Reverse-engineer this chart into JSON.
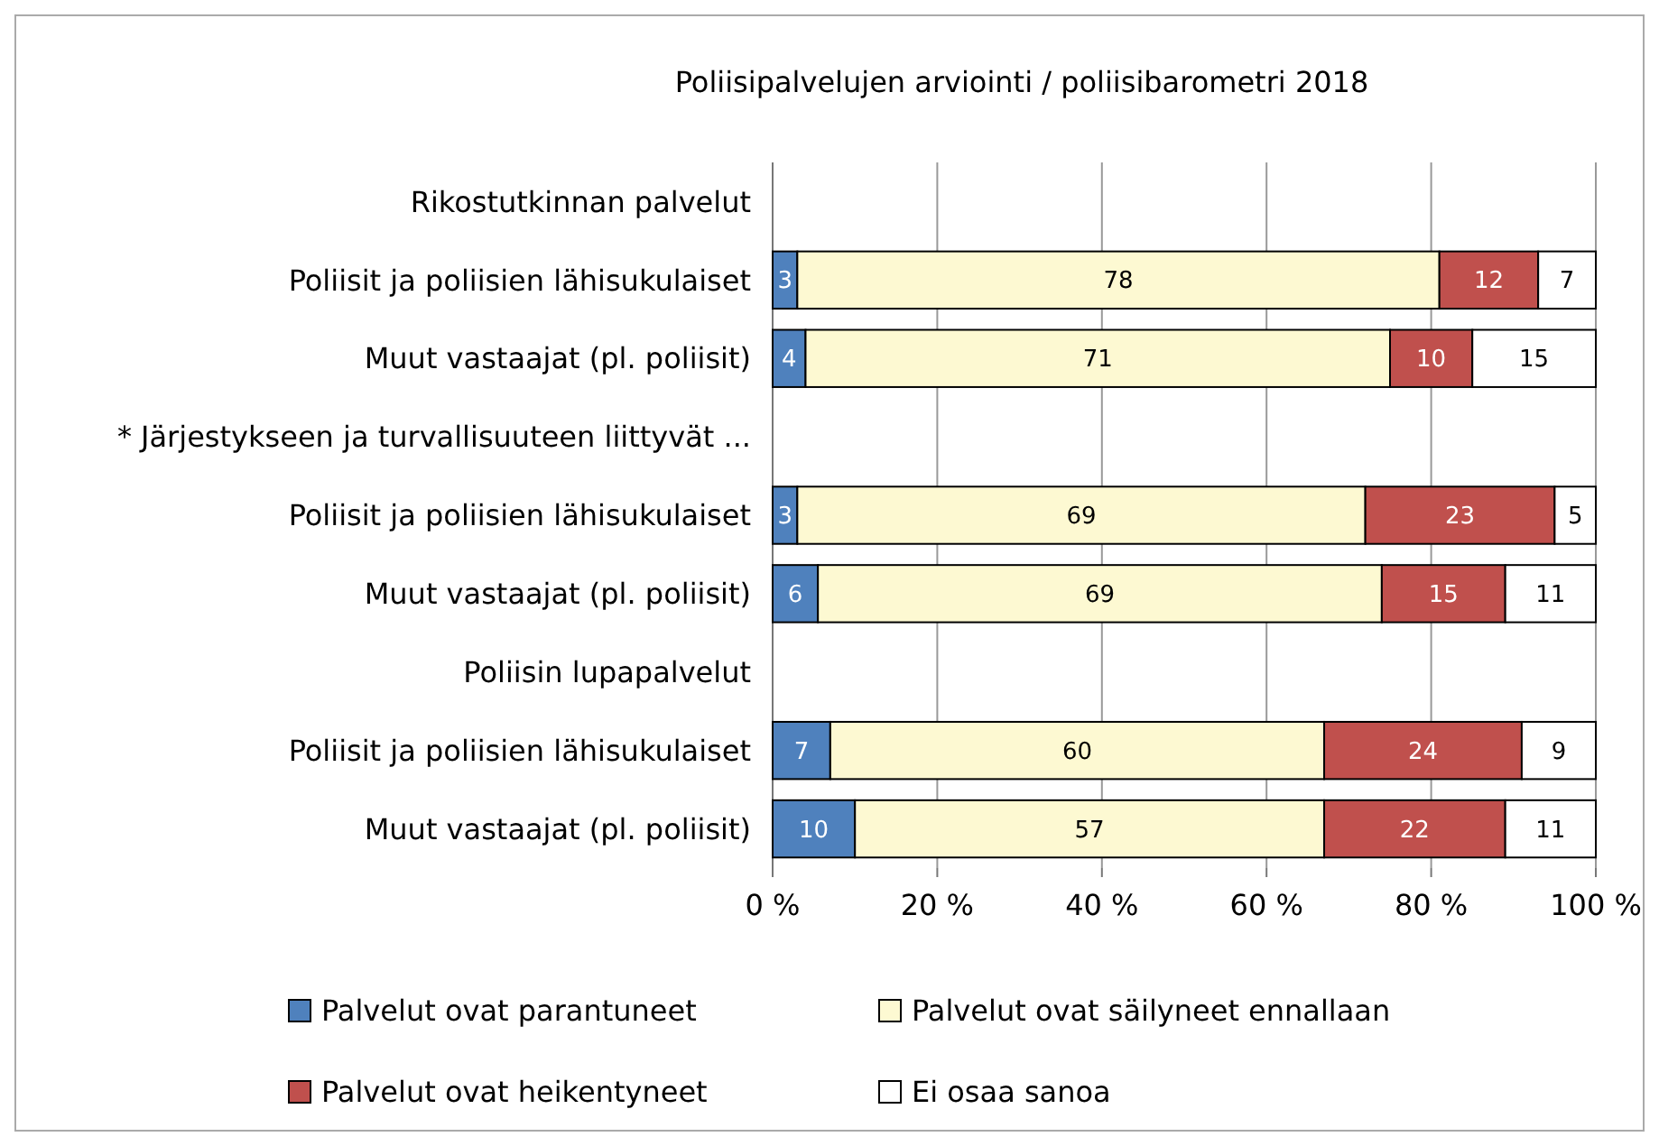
{
  "chart_data": {
    "type": "bar",
    "orientation": "horizontal",
    "stacked": true,
    "title": "Poliisipalvelujen arviointi  / poliisibarometri 2018",
    "categories": [
      "Rikostutkinnan palvelut",
      "Poliisit ja poliisien lähisukulaiset",
      "Muut vastaajat (pl. poliisit)",
      "* Järjestykseen ja turvallisuuteen liittyvät ...",
      "Poliisit ja poliisien lähisukulaiset",
      "Muut vastaajat (pl. poliisit)",
      "Poliisin lupapalvelut",
      "Poliisit ja poliisien lähisukulaiset",
      "Muut vastaajat (pl. poliisit)"
    ],
    "series": [
      {
        "name": "Palvelut ovat parantuneet",
        "color": "#4f81bd",
        "values": [
          null,
          3,
          4,
          null,
          3,
          5.5,
          null,
          7,
          10
        ],
        "value_labels": [
          null,
          "3",
          "4",
          null,
          "3",
          "6",
          null,
          "7",
          "10"
        ]
      },
      {
        "name": "Palvelut ovat säilyneet ennallaan",
        "color": "#fdf9d2",
        "values": [
          null,
          78,
          71,
          null,
          69,
          68.5,
          null,
          60,
          57
        ],
        "value_labels": [
          null,
          "78",
          "71",
          null,
          "69",
          "69",
          null,
          "60",
          "57"
        ]
      },
      {
        "name": "Palvelut ovat heikentyneet",
        "color": "#c0504d",
        "values": [
          null,
          12,
          10,
          null,
          23,
          15,
          null,
          24,
          22
        ],
        "value_labels": [
          null,
          "12",
          "10",
          null,
          "23",
          "15",
          null,
          "24",
          "22"
        ]
      },
      {
        "name": "Ei osaa sanoa",
        "color": "#ffffff",
        "values": [
          null,
          7,
          15,
          null,
          5,
          11,
          null,
          9,
          11
        ],
        "value_labels": [
          null,
          "7",
          "15",
          null,
          "5",
          "11",
          null,
          "9",
          "11"
        ]
      }
    ],
    "xlim": [
      0,
      100
    ],
    "xticks": [
      {
        "value": 0,
        "label": "0 %"
      },
      {
        "value": 20,
        "label": "20 %"
      },
      {
        "value": 40,
        "label": "40 %"
      },
      {
        "value": 60,
        "label": "60 %"
      },
      {
        "value": 80,
        "label": "80 %"
      },
      {
        "value": 100,
        "label": "100 %"
      }
    ],
    "grid": "x",
    "legend": "bottom"
  }
}
